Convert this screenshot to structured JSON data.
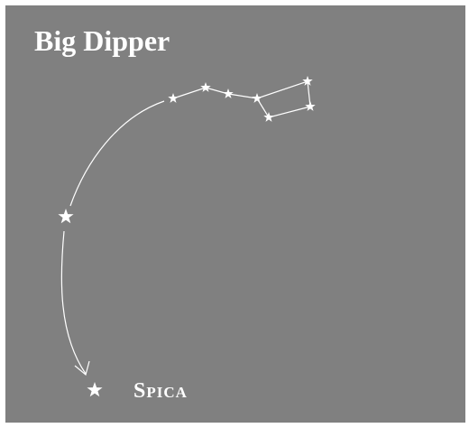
{
  "title": "Big Dipper",
  "star_label": "Spica"
}
